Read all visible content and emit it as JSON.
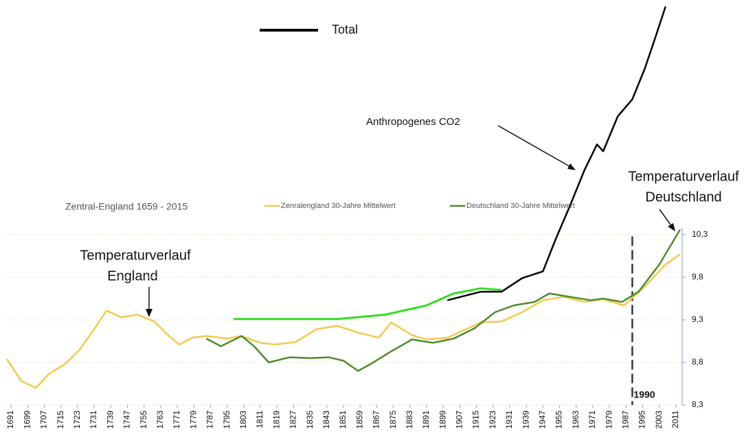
{
  "chart_data": {
    "type": "line",
    "title": "Zentral-England 1659 - 2015",
    "annotations": [
      "Anthropogenes CO2",
      "Temperaturverlauf",
      "England",
      "Temperaturverlauf",
      "Deutschland",
      "1990"
    ],
    "marker_year": 1990,
    "xlim": [
      1689,
      2014
    ],
    "xticks": [
      1691,
      1699,
      1707,
      1715,
      1723,
      1731,
      1739,
      1747,
      1755,
      1763,
      1771,
      1779,
      1787,
      1795,
      1803,
      1811,
      1819,
      1827,
      1835,
      1843,
      1851,
      1859,
      1867,
      1875,
      1883,
      1891,
      1899,
      1907,
      1915,
      1923,
      1931,
      1939,
      1947,
      1955,
      1963,
      1971,
      1979,
      1987,
      1995,
      2003,
      2011
    ],
    "ylim": [
      8.3,
      13
    ],
    "yticks": [
      {
        "value": 8.3,
        "label": "8,3"
      },
      {
        "value": 8.8,
        "label": "8,8"
      },
      {
        "value": 9.3,
        "label": "9,3"
      },
      {
        "value": 9.8,
        "label": "9,8"
      },
      {
        "value": 10.3,
        "label": "10,3"
      }
    ],
    "grid": true,
    "series": [
      {
        "name": "Zenralengland 30-Jahre Mittelwert",
        "color": "#f2c94c",
        "x": [
          1689,
          1696,
          1703,
          1709,
          1717,
          1724,
          1731,
          1737,
          1744,
          1752,
          1760,
          1767,
          1772,
          1778,
          1785,
          1795,
          1802,
          1811,
          1818,
          1828,
          1838,
          1848,
          1858,
          1868,
          1874,
          1884,
          1891,
          1901,
          1910,
          1917,
          1927,
          1937,
          1947,
          1957,
          1967,
          1976,
          1986,
          1996,
          2006,
          2013
        ],
        "values": [
          8.84,
          8.58,
          8.5,
          8.66,
          8.78,
          8.95,
          9.19,
          9.41,
          9.33,
          9.36,
          9.28,
          9.11,
          9.01,
          9.09,
          9.11,
          9.08,
          9.11,
          9.03,
          9.01,
          9.04,
          9.19,
          9.23,
          9.15,
          9.09,
          9.27,
          9.12,
          9.07,
          9.09,
          9.19,
          9.27,
          9.28,
          9.39,
          9.53,
          9.57,
          9.51,
          9.54,
          9.47,
          9.69,
          9.95,
          10.07
        ]
      },
      {
        "name": "Deutschland 30-Jahre Mittelwert",
        "color": "#4e8a2e",
        "x": [
          1785,
          1792,
          1802,
          1808,
          1815,
          1825,
          1835,
          1844,
          1851,
          1858,
          1864,
          1874,
          1884,
          1894,
          1904,
          1914,
          1924,
          1933,
          1943,
          1950,
          1960,
          1970,
          1976,
          1985,
          1993,
          2003,
          2013
        ],
        "values": [
          9.08,
          8.99,
          9.11,
          8.99,
          8.8,
          8.86,
          8.85,
          8.86,
          8.82,
          8.7,
          8.78,
          8.93,
          9.07,
          9.03,
          9.08,
          9.2,
          9.39,
          9.47,
          9.51,
          9.61,
          9.57,
          9.53,
          9.55,
          9.51,
          9.63,
          9.95,
          10.36
        ]
      },
      {
        "name": "Total",
        "color": "#000000",
        "x": [
          1901,
          1917,
          1927,
          1937,
          1947,
          1953,
          1960,
          1967,
          1973,
          1976,
          1983,
          1990,
          1996,
          2001,
          2006
        ],
        "values": [
          9.53,
          9.63,
          9.63,
          9.79,
          9.87,
          10.24,
          10.64,
          11.06,
          11.36,
          11.28,
          11.69,
          11.89,
          12.25,
          12.61,
          12.98
        ]
      },
      {
        "color": "#33dd22",
        "x": [
          1798,
          1848,
          1871,
          1891,
          1904,
          1917,
          1927
        ],
        "values": [
          9.31,
          9.31,
          9.36,
          9.47,
          9.61,
          9.67,
          9.65
        ]
      }
    ]
  }
}
